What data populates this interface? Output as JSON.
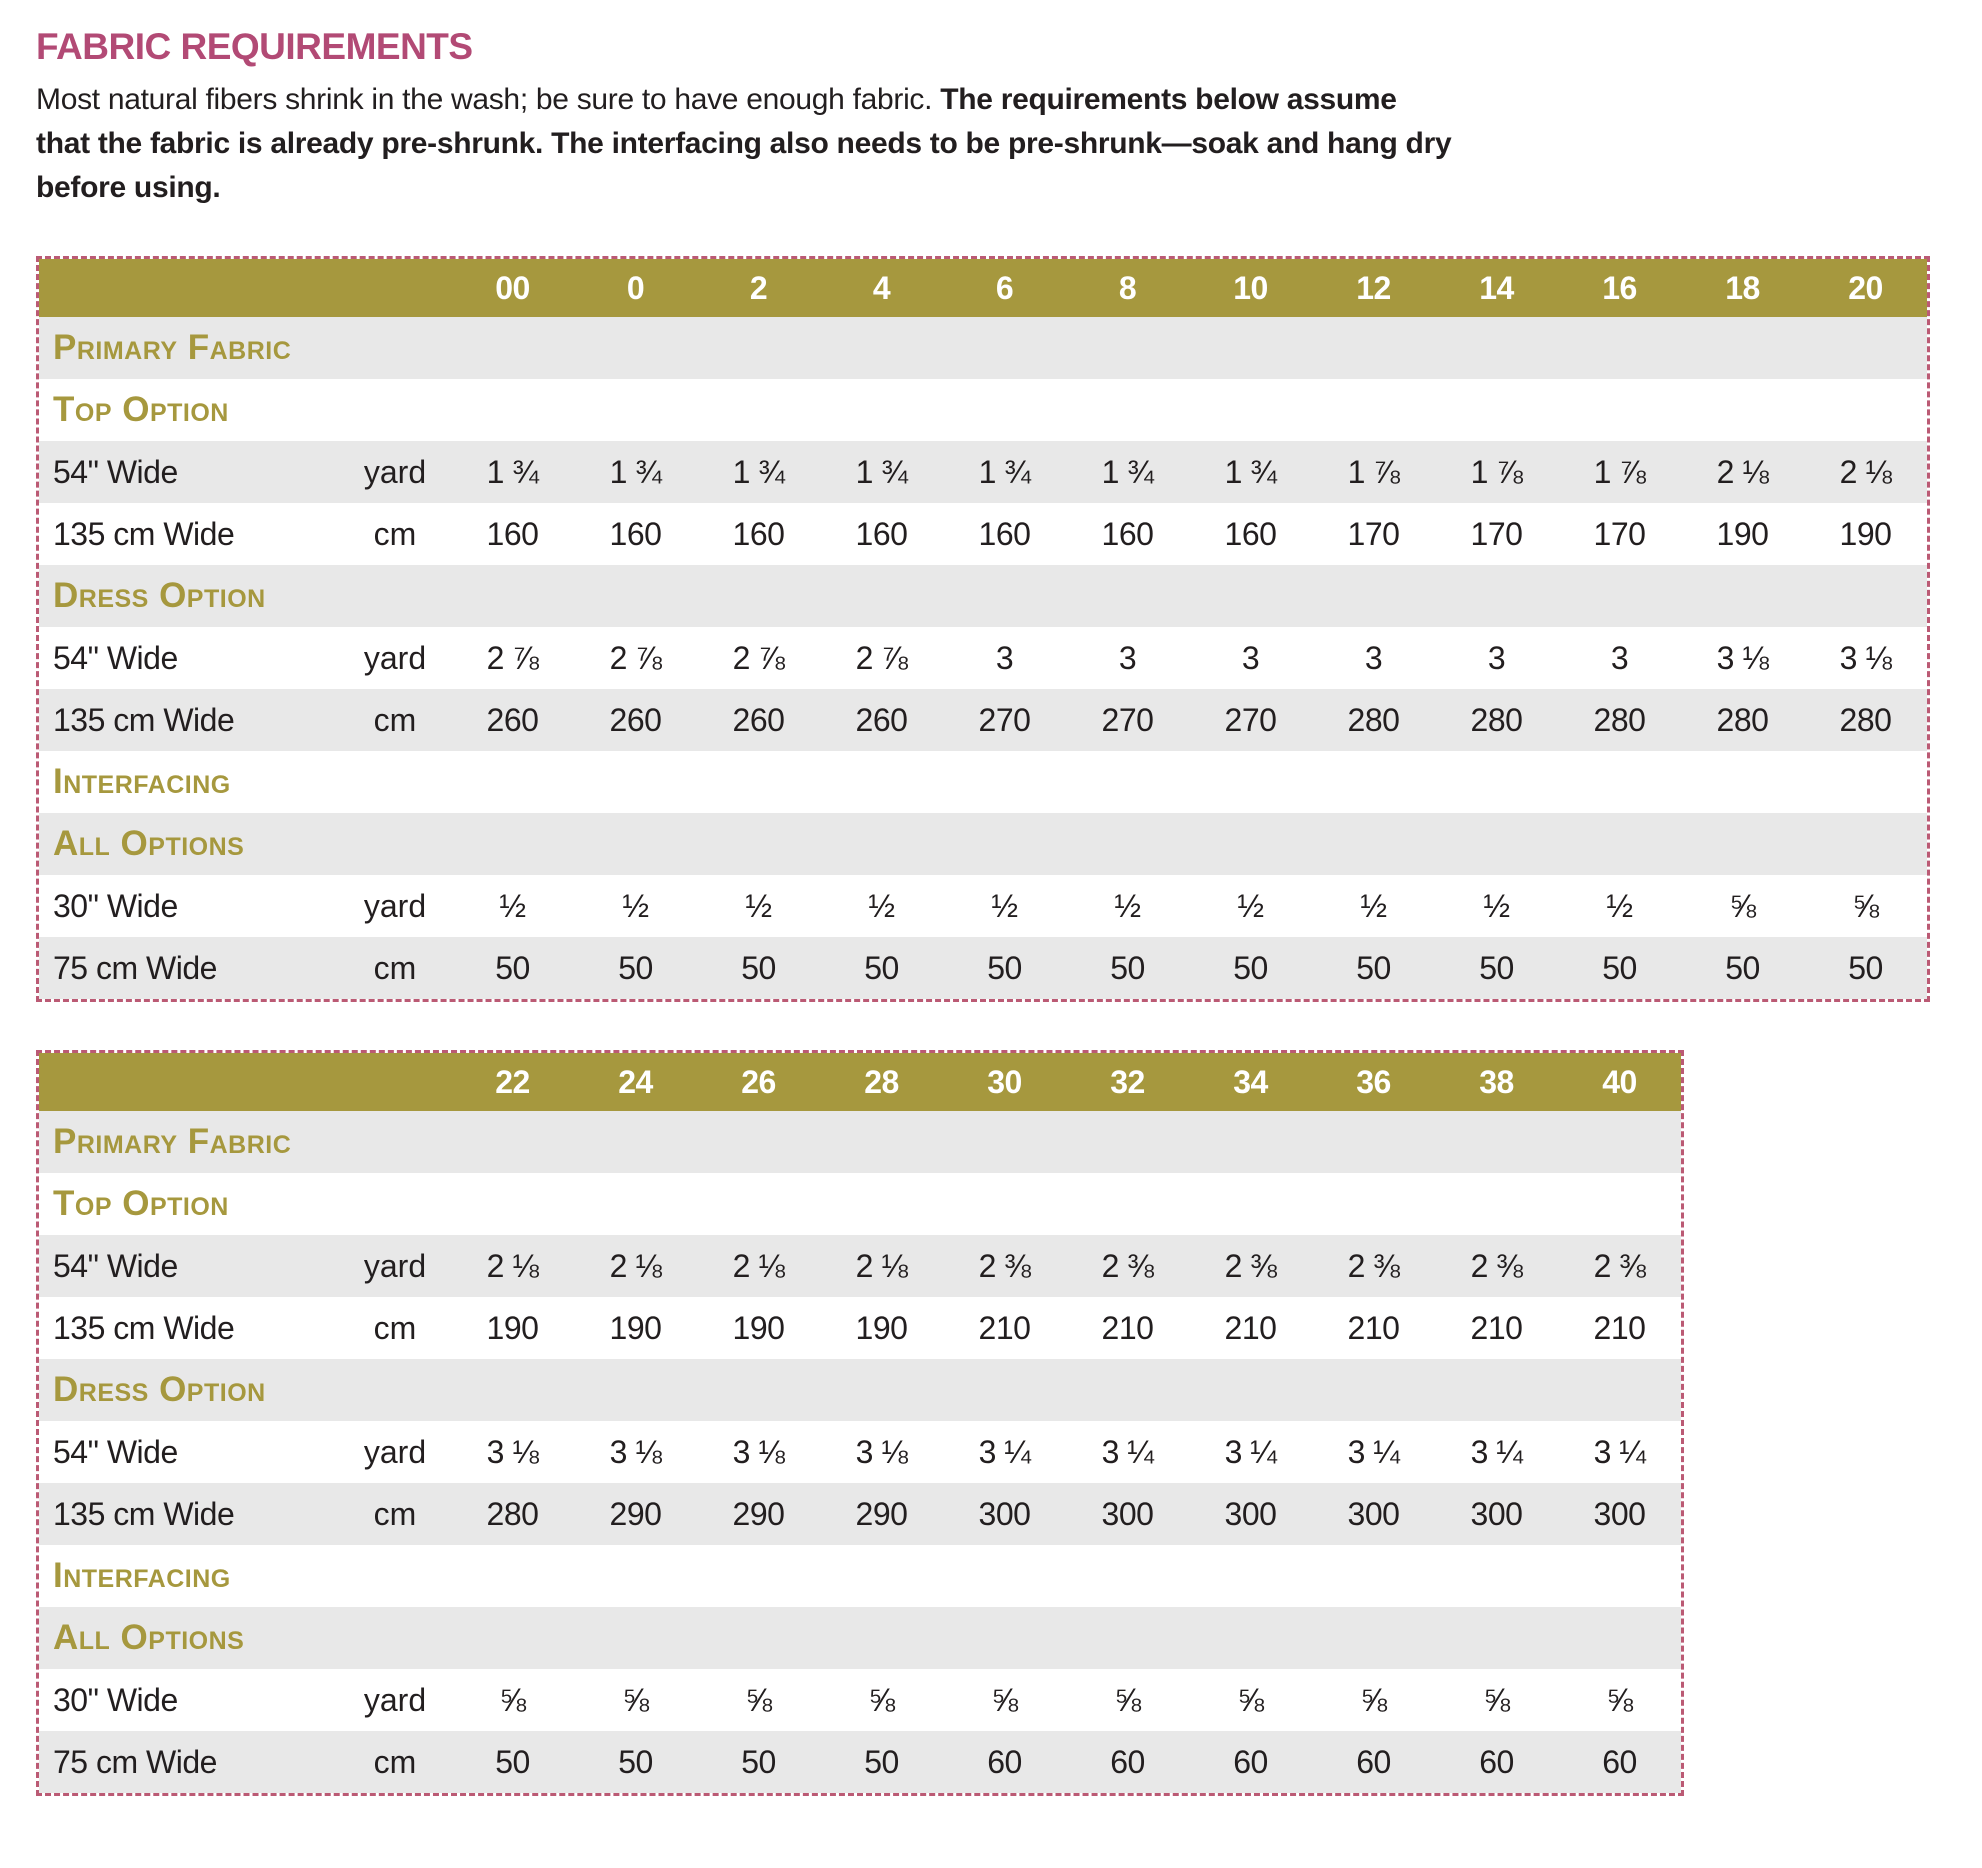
{
  "title": "FABRIC REQUIREMENTS",
  "intro": {
    "line1_regular": "Most natural fibers shrink in the wash; be sure to have enough fabric. ",
    "line1_bold": "The requirements below assume",
    "line2_bold": "that the fabric is already pre-shrunk. The interfacing also needs to be pre-shrunk—soak and hang dry",
    "line3_bold": "before using."
  },
  "colors": {
    "title_text": "#b24a75",
    "header_bg": "#a6983e",
    "section_text": "#a6983e",
    "stripe_bg": "#e8e8e8",
    "dashed_border": "#bb5a74",
    "header_text": "#ffffff",
    "body_text": "#221e1f"
  },
  "tables": [
    {
      "sizes": [
        "00",
        "0",
        "2",
        "4",
        "6",
        "8",
        "10",
        "12",
        "14",
        "16",
        "18",
        "20"
      ],
      "rows": [
        {
          "type": "section",
          "label": "Primary Fabric"
        },
        {
          "type": "section",
          "label": "Top Option"
        },
        {
          "type": "data",
          "label": "54\" Wide",
          "unit": "yard",
          "values": [
            "1 ¾",
            "1 ¾",
            "1 ¾",
            "1 ¾",
            "1 ¾",
            "1 ¾",
            "1 ¾",
            "1 ⅞",
            "1 ⅞",
            "1 ⅞",
            "2 ⅛",
            "2 ⅛"
          ]
        },
        {
          "type": "data",
          "label": "135 cm Wide",
          "unit": "cm",
          "values": [
            "160",
            "160",
            "160",
            "160",
            "160",
            "160",
            "160",
            "170",
            "170",
            "170",
            "190",
            "190"
          ]
        },
        {
          "type": "section",
          "label": "Dress Option"
        },
        {
          "type": "data",
          "label": "54\" Wide",
          "unit": "yard",
          "values": [
            "2 ⅞",
            "2 ⅞",
            "2 ⅞",
            "2 ⅞",
            "3",
            "3",
            "3",
            "3",
            "3",
            "3",
            "3 ⅛",
            "3 ⅛"
          ]
        },
        {
          "type": "data",
          "label": "135 cm Wide",
          "unit": "cm",
          "values": [
            "260",
            "260",
            "260",
            "260",
            "270",
            "270",
            "270",
            "280",
            "280",
            "280",
            "280",
            "280"
          ]
        },
        {
          "type": "section",
          "label": "Interfacing"
        },
        {
          "type": "section",
          "label": "All Options"
        },
        {
          "type": "data",
          "label": "30\" Wide",
          "unit": "yard",
          "values": [
            "½",
            "½",
            "½",
            "½",
            "½",
            "½",
            "½",
            "½",
            "½",
            "½",
            "⅝",
            "⅝"
          ]
        },
        {
          "type": "data",
          "label": "75 cm Wide",
          "unit": "cm",
          "values": [
            "50",
            "50",
            "50",
            "50",
            "50",
            "50",
            "50",
            "50",
            "50",
            "50",
            "50",
            "50"
          ]
        }
      ]
    },
    {
      "sizes": [
        "22",
        "24",
        "26",
        "28",
        "30",
        "32",
        "34",
        "36",
        "38",
        "40"
      ],
      "rows": [
        {
          "type": "section",
          "label": "Primary Fabric"
        },
        {
          "type": "section",
          "label": "Top Option"
        },
        {
          "type": "data",
          "label": "54\" Wide",
          "unit": "yard",
          "values": [
            "2 ⅛",
            "2 ⅛",
            "2 ⅛",
            "2 ⅛",
            "2 ⅜",
            "2 ⅜",
            "2 ⅜",
            "2 ⅜",
            "2 ⅜",
            "2 ⅜"
          ]
        },
        {
          "type": "data",
          "label": "135 cm Wide",
          "unit": "cm",
          "values": [
            "190",
            "190",
            "190",
            "190",
            "210",
            "210",
            "210",
            "210",
            "210",
            "210"
          ]
        },
        {
          "type": "section",
          "label": "Dress Option"
        },
        {
          "type": "data",
          "label": "54\" Wide",
          "unit": "yard",
          "values": [
            "3 ⅛",
            "3 ⅛",
            "3 ⅛",
            "3 ⅛",
            "3 ¼",
            "3 ¼",
            "3 ¼",
            "3 ¼",
            "3 ¼",
            "3 ¼"
          ]
        },
        {
          "type": "data",
          "label": "135 cm Wide",
          "unit": "cm",
          "values": [
            "280",
            "290",
            "290",
            "290",
            "300",
            "300",
            "300",
            "300",
            "300",
            "300"
          ]
        },
        {
          "type": "section",
          "label": "Interfacing"
        },
        {
          "type": "section",
          "label": "All Options"
        },
        {
          "type": "data",
          "label": "30\" Wide",
          "unit": "yard",
          "values": [
            "⅝",
            "⅝",
            "⅝",
            "⅝",
            "⅝",
            "⅝",
            "⅝",
            "⅝",
            "⅝",
            "⅝"
          ]
        },
        {
          "type": "data",
          "label": "75 cm Wide",
          "unit": "cm",
          "values": [
            "50",
            "50",
            "50",
            "50",
            "60",
            "60",
            "60",
            "60",
            "60",
            "60"
          ]
        }
      ]
    }
  ]
}
